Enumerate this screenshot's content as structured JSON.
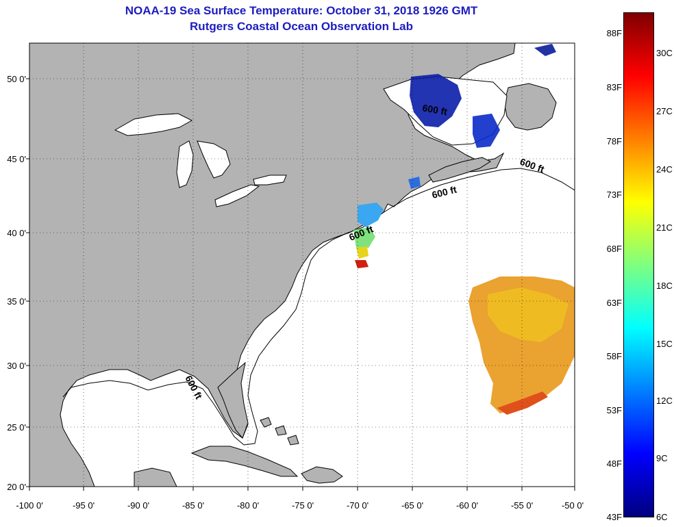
{
  "header": {
    "title": "NOAA-19 Sea Surface Temperature:  October 31, 2018 1926 GMT",
    "subtitle": "Rutgers Coastal Ocean Observation Lab"
  },
  "map": {
    "lat_ticks": [
      "50 0'",
      "45 0'",
      "40 0'",
      "35 0'",
      "30 0'",
      "25 0'",
      "20 0'"
    ],
    "lon_ticks": [
      "-100 0'",
      "-95 0'",
      "-90 0'",
      "-85 0'",
      "-80 0'",
      "-75 0'",
      "-70 0'",
      "-65 0'",
      "-60 0'",
      "-55 0'",
      "-50 0'"
    ],
    "contour_labels": [
      "600 ft",
      "600 ft",
      "600 ft",
      "600 ft",
      "600 ft"
    ],
    "colors": {
      "land": "#b3b3b3",
      "ocean": "#ffffff",
      "title": "#1c1cbf"
    }
  },
  "colorbar": {
    "fahrenheit": [
      "88F",
      "83F",
      "78F",
      "73F",
      "68F",
      "63F",
      "58F",
      "53F",
      "48F",
      "43F"
    ],
    "celsius": [
      "30C",
      "27C",
      "24C",
      "21C",
      "18C",
      "15C",
      "12C",
      "9C",
      "6C"
    ],
    "colors": [
      "#7f0000",
      "#ff0000",
      "#ff7f00",
      "#ffff00",
      "#7fff7f",
      "#00ffff",
      "#007fff",
      "#0000ff",
      "#00007f"
    ]
  }
}
